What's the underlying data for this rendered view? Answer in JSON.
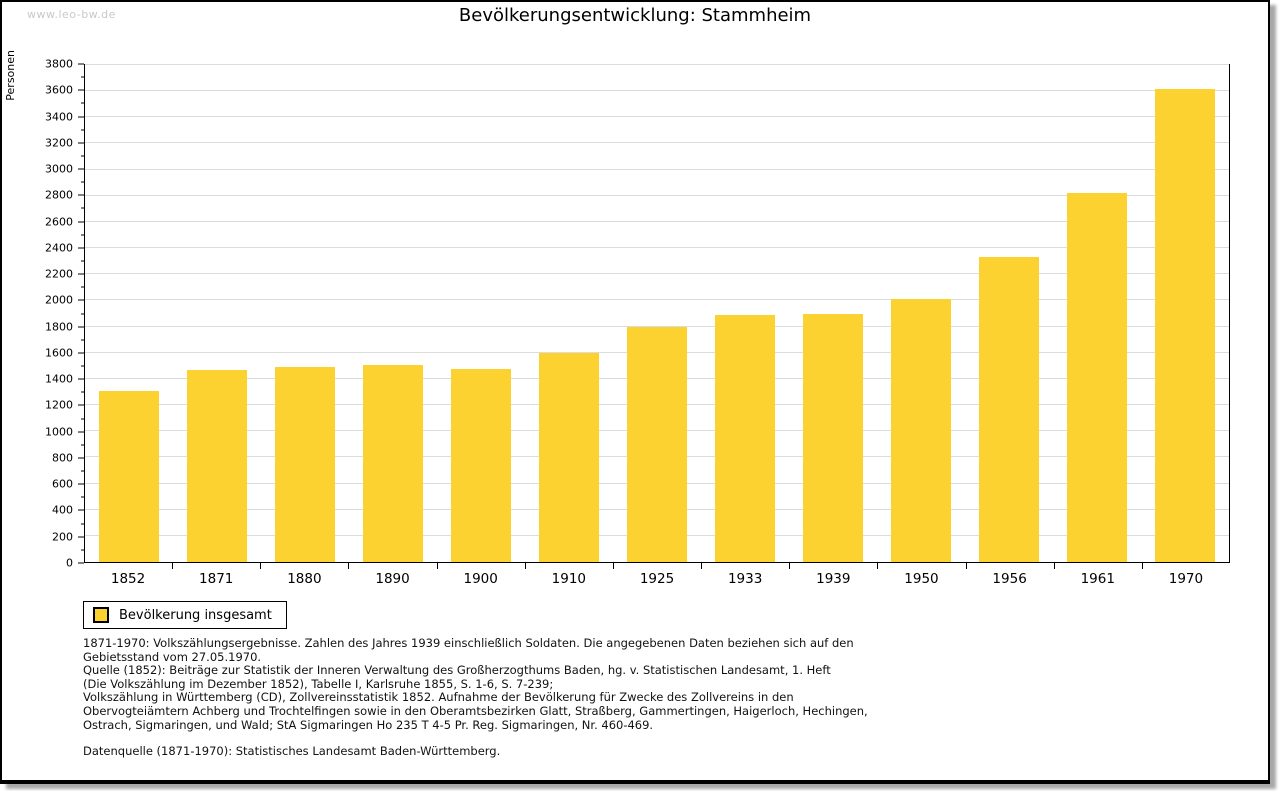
{
  "watermark": "www.leo-bw.de",
  "title": "Bevölkerungsentwicklung: Stammheim",
  "chart_data": {
    "type": "bar",
    "title": "Bevölkerungsentwicklung: Stammheim",
    "xlabel": "",
    "ylabel": "Personen",
    "categories": [
      "1852",
      "1871",
      "1880",
      "1890",
      "1900",
      "1910",
      "1925",
      "1933",
      "1939",
      "1950",
      "1956",
      "1961",
      "1970"
    ],
    "values": [
      1305,
      1470,
      1490,
      1505,
      1475,
      1600,
      1800,
      1890,
      1900,
      2010,
      2335,
      2820,
      3615
    ],
    "series_name": "Bevölkerung insgesamt",
    "ylim": [
      0,
      3800
    ],
    "ytick_step": 200,
    "yminor_step": 100,
    "yticks": [
      0,
      200,
      400,
      600,
      800,
      1000,
      1200,
      1400,
      1600,
      1800,
      2000,
      2200,
      2400,
      2600,
      2800,
      3000,
      3200,
      3400,
      3600,
      3800
    ],
    "grid": true,
    "legend_position": "bottom-left",
    "bar_color": "#fcd230",
    "gridline_color": "#dcdcdc"
  },
  "legend": {
    "label": "Bevölkerung insgesamt",
    "swatch_color": "#fcd230"
  },
  "footnotes": {
    "lines": [
      "1871-1970: Volkszählungsergebnisse. Zahlen des Jahres 1939 einschließlich Soldaten. Die angegebenen Daten beziehen sich auf den",
      "Gebietsstand vom 27.05.1970.",
      "Quelle (1852): Beiträge zur Statistik der Inneren Verwaltung des Großherzogthums Baden, hg. v. Statistischen Landesamt, 1. Heft",
      "(Die Volkszählung im Dezember 1852), Tabelle I, Karlsruhe 1855, S. 1-6, S. 7-239;",
      "Volkszählung in Württemberg (CD), Zollvereinsstatistik 1852. Aufnahme der Bevölkerung für Zwecke des Zollvereins in den",
      "Obervogteiämtern Achberg und Trochtelfingen sowie in den Oberamtsbezirken Glatt, Straßberg, Gammertingen, Haigerloch, Hechingen,",
      "Ostrach, Sigmaringen, und Wald; StA Sigmaringen Ho 235 T 4-5 Pr. Reg. Sigmaringen, Nr. 460-469."
    ],
    "datenquelle": "Datenquelle (1871-1970): Statistisches Landesamt Baden-Württemberg."
  }
}
